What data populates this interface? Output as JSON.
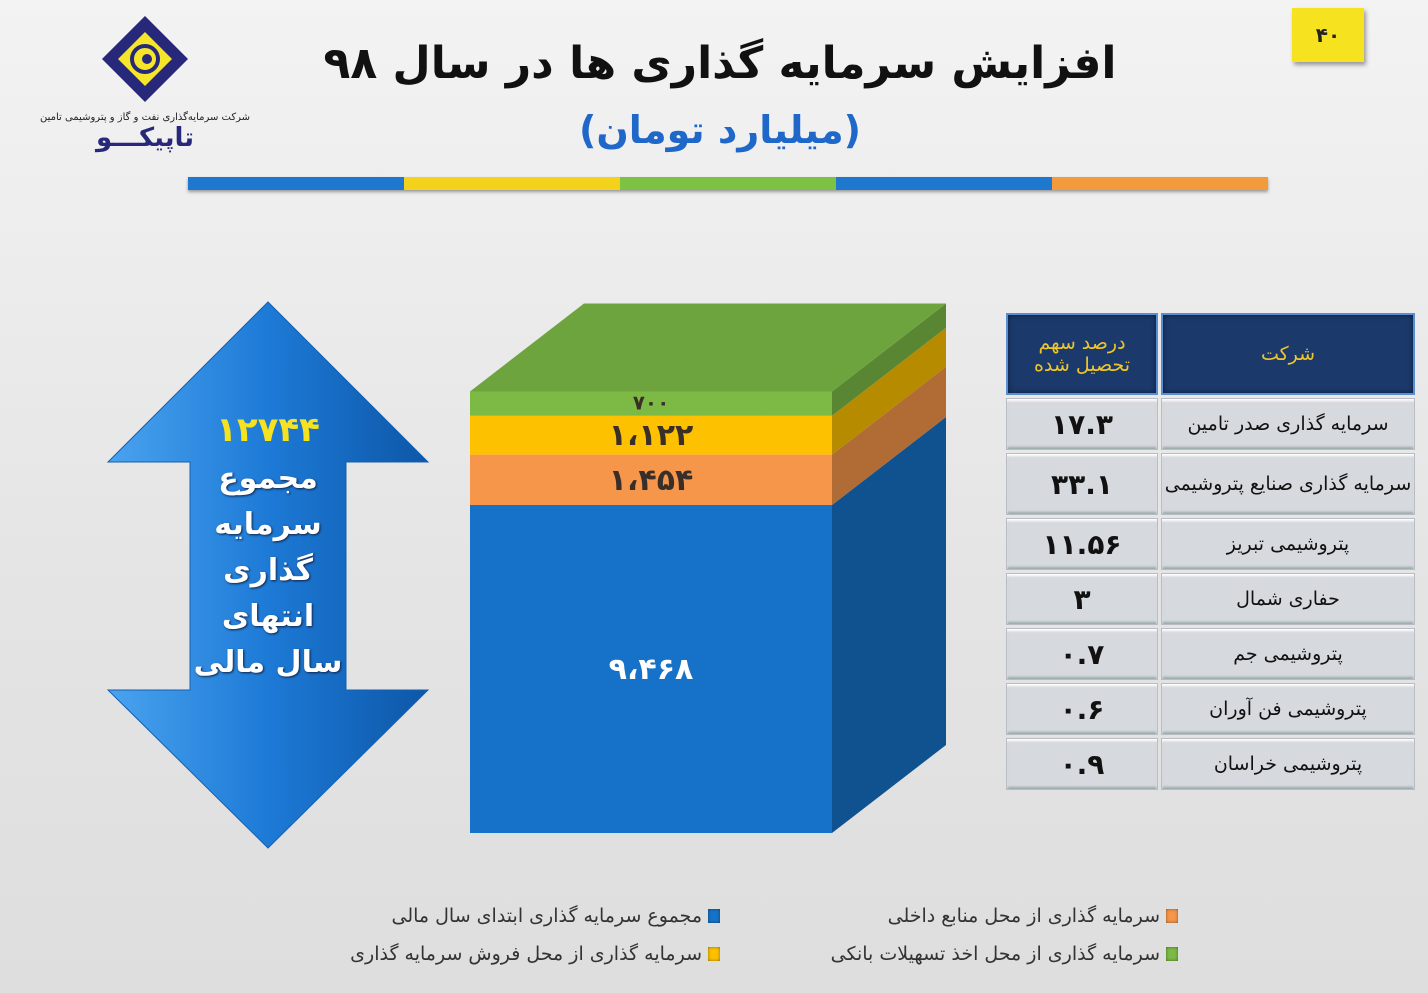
{
  "header": {
    "title": "افزایش سرمایه گذاری ها در سال ۹۸",
    "subtitle": "(میلیارد تومان)",
    "page_number": "۴۰",
    "stripe_colors": [
      "#1f78d0",
      "#f4d21c",
      "#7dc242",
      "#1f78d0",
      "#f39a3d"
    ]
  },
  "logo": {
    "company_line": "شرکت سرمایه‌گذاری نفت و گاز و پتروشیمی تامین",
    "brand": "تاپیکـــو"
  },
  "arrow": {
    "total": "۱۲۷۴۴",
    "label_lines": [
      "مجموع",
      "سرمایه",
      "گذاری",
      "انتهای",
      "سال مالی"
    ],
    "color": "#1d7ad6"
  },
  "chart_data": {
    "type": "bar",
    "stacked": true,
    "style": "3d",
    "categories": [
      ""
    ],
    "series": [
      {
        "name": "مجموع سرمایه گذاری ابتدای سال مالی",
        "values": [
          9468
        ],
        "label": "۹،۴۶۸",
        "color": "#1672c8"
      },
      {
        "name": "سرمایه گذاری از محل منابع داخلی",
        "values": [
          1454
        ],
        "label": "۱،۴۵۴",
        "color": "#f6964a"
      },
      {
        "name": "سرمایه گذاری از محل فروش سرمایه گذاری",
        "values": [
          1122
        ],
        "label": "۱،۱۲۲",
        "color": "#fec100"
      },
      {
        "name": "سرمایه گذاری از محل اخذ تسهیلات بانکی",
        "values": [
          700
        ],
        "label": "۷۰۰",
        "color": "#7cba45"
      }
    ],
    "legend_position": "bottom",
    "grid": false
  },
  "table": {
    "headers": {
      "company": "شرکت",
      "percent": "درصد سهم تحصیل شده"
    },
    "rows": [
      {
        "company": "سرمایه گذاری صدر تامین",
        "percent": "۱۷.۳"
      },
      {
        "company": "سرمایه گذاری صنایع پتروشیمی",
        "percent": "۳۳.۱"
      },
      {
        "company": "پتروشیمی تبریز",
        "percent": "۱۱.۵۶"
      },
      {
        "company": "حفاری شمال",
        "percent": "۳"
      },
      {
        "company": "پتروشیمی جم",
        "percent": "۰.۷"
      },
      {
        "company": "پتروشیمی فن آوران",
        "percent": "۰.۶"
      },
      {
        "company": "پتروشیمی خراسان",
        "percent": "۰.۹"
      }
    ]
  }
}
